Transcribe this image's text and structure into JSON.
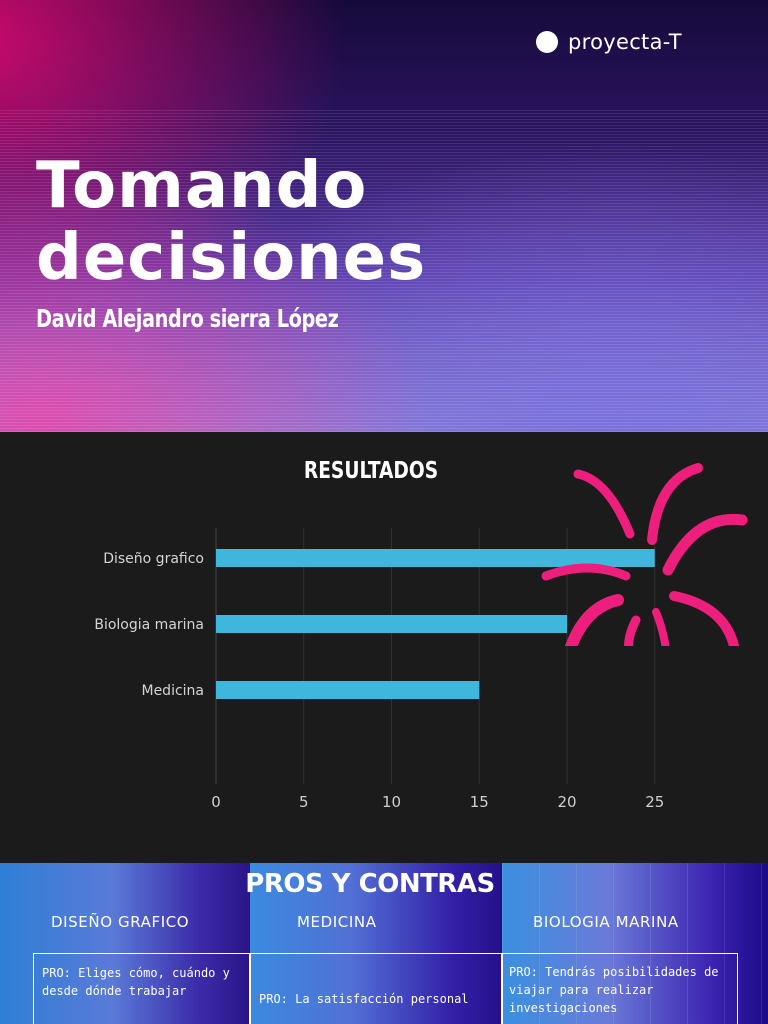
{
  "brand": {
    "name": "proyecta-T"
  },
  "hero": {
    "title_line1": "Tomando",
    "title_line2": "decisiones",
    "subtitle": "David Alejandro sierra López"
  },
  "chart_data": {
    "type": "bar",
    "orientation": "horizontal",
    "title": "RESULTADOS",
    "categories": [
      "Diseño grafico",
      "Biologia marina",
      "Medicina"
    ],
    "values": [
      25,
      20,
      15
    ],
    "xlim": [
      0,
      30
    ],
    "xticks": [
      0,
      5,
      10,
      15,
      20,
      25
    ],
    "grid": true,
    "bar_color": "#3fb6dc",
    "xlabel": "",
    "ylabel": ""
  },
  "pros": {
    "title": "PROS Y CONTRAS",
    "columns": [
      {
        "heading": "DISEÑO GRAFICO",
        "pro": "PRO: Eliges cómo, cuándo y desde dónde trabajar"
      },
      {
        "heading": "MEDICINA",
        "pro": "PRO: La satisfacción personal"
      },
      {
        "heading": "BIOLOGIA MARINA",
        "pro": "PRO: Tendrás posibilidades de viajar para realizar investigaciones"
      }
    ]
  },
  "colors": {
    "accent_pink": "#ee1f7c",
    "chart_background": "#1b1b1b"
  },
  "icons": {
    "brand_mark": "circle-dot-icon",
    "decoration": "splash-burst-icon"
  }
}
